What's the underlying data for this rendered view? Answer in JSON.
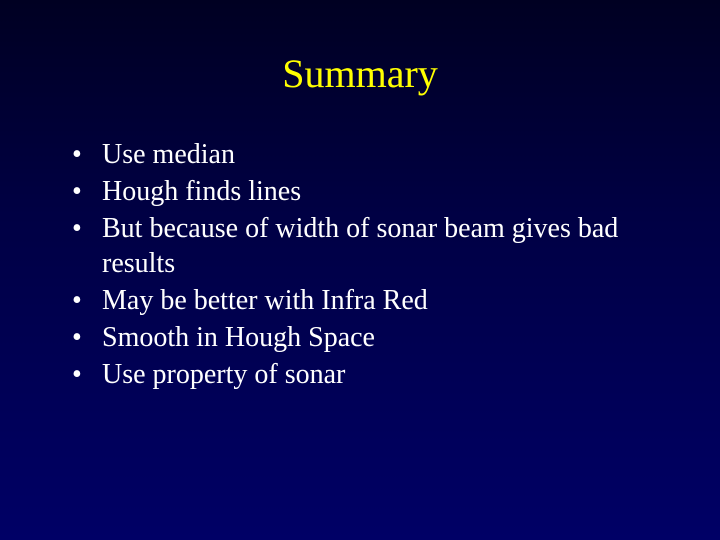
{
  "slide": {
    "title": "Summary",
    "title_color": "#ffff00",
    "title_fontsize": 40,
    "background_gradient": [
      "#000022",
      "#000044",
      "#000066"
    ],
    "bullet_color": "#ffffff",
    "bullet_fontsize": 28,
    "font_family": "Times New Roman",
    "bullets": [
      "Use median",
      "Hough finds lines",
      "But because of width of sonar beam gives bad results",
      "May be better with Infra Red",
      "Smooth in Hough Space",
      "Use property of sonar"
    ]
  }
}
